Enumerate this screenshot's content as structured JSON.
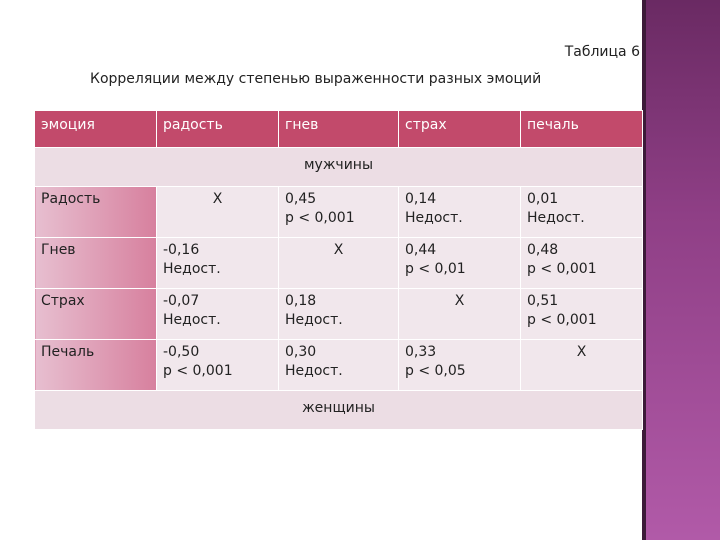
{
  "table_number": "Таблица 6",
  "caption": "Корреляции между степенью выраженности разных эмоций",
  "headers": [
    "эмоция",
    "радость",
    "гнев",
    "страх",
    "печаль"
  ],
  "group_men": "мужчины",
  "group_women": "женщины",
  "rows": [
    {
      "label": "Радость",
      "cells": [
        {
          "v": "X",
          "p": ""
        },
        {
          "v": "0,45",
          "p": "p < 0,001"
        },
        {
          "v": "0,14",
          "p": "Недост."
        },
        {
          "v": "0,01",
          "p": "Недост."
        }
      ]
    },
    {
      "label": "Гнев",
      "cells": [
        {
          "v": "-0,16",
          "p": "Недост."
        },
        {
          "v": "X",
          "p": ""
        },
        {
          "v": "0,44",
          "p": "p < 0,01"
        },
        {
          "v": "0,48",
          "p": "p < 0,001"
        }
      ]
    },
    {
      "label": "Страх",
      "cells": [
        {
          "v": "-0,07",
          "p": "Недост."
        },
        {
          "v": "0,18",
          "p": "Недост."
        },
        {
          "v": "X",
          "p": ""
        },
        {
          "v": "0,51",
          "p": "p < 0,001"
        }
      ]
    },
    {
      "label": "Печаль",
      "cells": [
        {
          "v": "-0,50",
          "p": "p < 0,001"
        },
        {
          "v": "0,30",
          "p": "Недост."
        },
        {
          "v": "0,33",
          "p": "p < 0,05"
        },
        {
          "v": "X",
          "p": ""
        }
      ]
    }
  ]
}
